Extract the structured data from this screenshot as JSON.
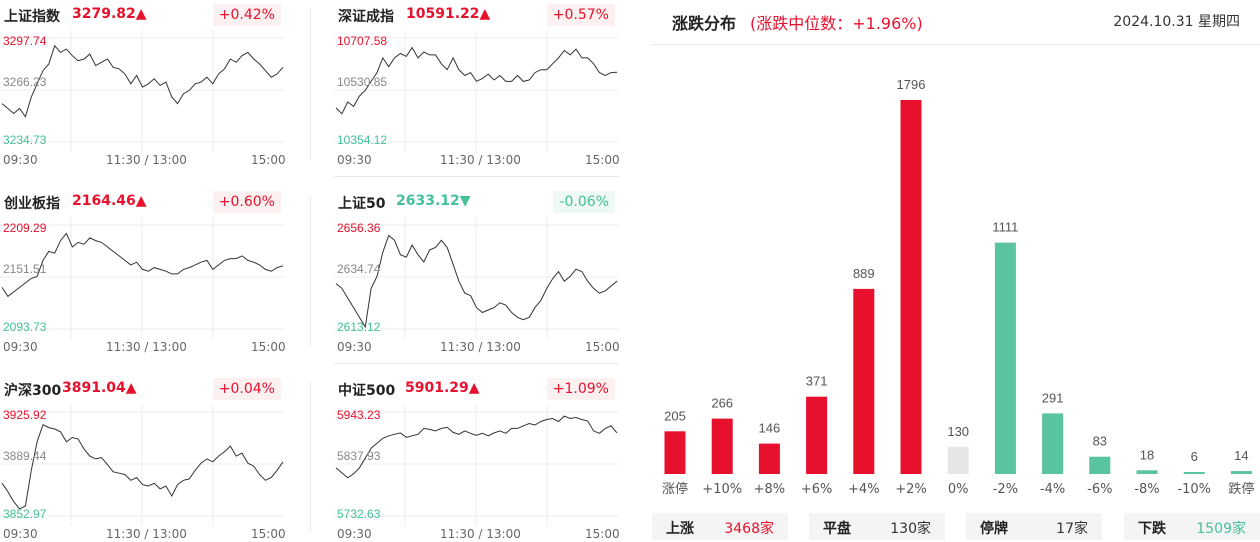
{
  "indices": [
    {
      "name": "上证指数",
      "price": "3279.82",
      "dir": "up",
      "change": "+0.42%",
      "ymax": "3297.74",
      "ymid": "3266.23",
      "ymin": "3234.73",
      "series": [
        3258,
        3255,
        3252,
        3255,
        3250,
        3262,
        3270,
        3278,
        3282,
        3293,
        3289,
        3291,
        3287,
        3284,
        3285,
        3288,
        3281,
        3283,
        3285,
        3280,
        3279,
        3276,
        3270,
        3275,
        3268,
        3270,
        3273,
        3269,
        3271,
        3262,
        3258,
        3264,
        3266,
        3270,
        3271,
        3274,
        3270,
        3276,
        3279,
        3285,
        3283,
        3287,
        3289,
        3285,
        3282,
        3278,
        3274,
        3276,
        3280
      ]
    },
    {
      "name": "深证成指",
      "price": "10591.22",
      "dir": "up",
      "change": "+0.57%",
      "ymax": "10707.58",
      "ymid": "10530.85",
      "ymin": "10354.12",
      "series": [
        10470,
        10450,
        10490,
        10475,
        10510,
        10530,
        10560,
        10590,
        10640,
        10610,
        10640,
        10655,
        10645,
        10675,
        10640,
        10660,
        10650,
        10650,
        10620,
        10600,
        10640,
        10600,
        10580,
        10590,
        10560,
        10570,
        10585,
        10565,
        10580,
        10560,
        10560,
        10580,
        10560,
        10565,
        10590,
        10600,
        10600,
        10620,
        10640,
        10665,
        10650,
        10670,
        10640,
        10640,
        10620,
        10590,
        10580,
        10590,
        10591
      ]
    },
    {
      "name": "创业板指",
      "price": "2164.46",
      "dir": "up",
      "change": "+0.60%",
      "ymax": "2209.29",
      "ymid": "2151.51",
      "ymin": "2093.73",
      "series": [
        2140,
        2130,
        2135,
        2140,
        2145,
        2150,
        2152,
        2170,
        2180,
        2178,
        2192,
        2200,
        2185,
        2190,
        2188,
        2195,
        2192,
        2190,
        2185,
        2180,
        2175,
        2170,
        2165,
        2168,
        2160,
        2158,
        2162,
        2160,
        2158,
        2155,
        2155,
        2160,
        2162,
        2165,
        2168,
        2170,
        2160,
        2165,
        2170,
        2172,
        2172,
        2175,
        2170,
        2168,
        2165,
        2160,
        2158,
        2162,
        2164
      ]
    },
    {
      "name": "上证50",
      "price": "2633.12",
      "dir": "down",
      "change": "-0.06%",
      "ymax": "2656.36",
      "ymid": "2634.74",
      "ymin": "2613.12",
      "series": [
        2632,
        2630,
        2626,
        2622,
        2618,
        2614,
        2630,
        2635,
        2645,
        2652,
        2650,
        2644,
        2643,
        2648,
        2644,
        2641,
        2646,
        2647,
        2650,
        2647,
        2640,
        2633,
        2628,
        2627,
        2622,
        2620,
        2621,
        2622,
        2624,
        2623,
        2620,
        2618,
        2617,
        2618,
        2622,
        2625,
        2630,
        2634,
        2637,
        2633,
        2635,
        2638,
        2637,
        2633,
        2630,
        2628,
        2629,
        2631,
        2633
      ]
    },
    {
      "name": "沪深300",
      "price": "3891.04",
      "dir": "up",
      "change": "+0.04%",
      "ymax": "3925.92",
      "ymid": "3889.44",
      "ymin": "3852.97",
      "series": [
        3876,
        3870,
        3863,
        3858,
        3860,
        3885,
        3905,
        3917,
        3915,
        3914,
        3912,
        3905,
        3908,
        3907,
        3900,
        3895,
        3893,
        3894,
        3889,
        3884,
        3883,
        3882,
        3878,
        3880,
        3875,
        3874,
        3876,
        3872,
        3874,
        3867,
        3875,
        3878,
        3879,
        3885,
        3890,
        3893,
        3891,
        3895,
        3898,
        3902,
        3895,
        3897,
        3890,
        3888,
        3882,
        3878,
        3880,
        3885,
        3891
      ]
    },
    {
      "name": "中证500",
      "price": "5901.29",
      "dir": "up",
      "change": "+1.09%",
      "ymax": "5943.23",
      "ymid": "5837.93",
      "ymin": "5732.63",
      "series": [
        5830,
        5820,
        5810,
        5818,
        5830,
        5850,
        5870,
        5880,
        5890,
        5895,
        5898,
        5901,
        5892,
        5895,
        5898,
        5910,
        5908,
        5905,
        5910,
        5912,
        5902,
        5898,
        5905,
        5900,
        5896,
        5900,
        5895,
        5901,
        5905,
        5900,
        5910,
        5910,
        5915,
        5920,
        5917,
        5924,
        5928,
        5930,
        5924,
        5935,
        5930,
        5932,
        5928,
        5925,
        5905,
        5900,
        5910,
        5915,
        5901
      ]
    }
  ],
  "time_labels": {
    "open": "09:30",
    "mid": "11:30 / 13:00",
    "close": "15:00"
  },
  "distribution": {
    "title": "涨跌分布",
    "subtitle": "(涨跌中位数：+1.96%)",
    "date": "2024.10.31 星期四",
    "colors": {
      "up": "#e8112d",
      "flat": "#e6e6e6",
      "down": "#5ac3a0"
    },
    "chart_data": {
      "type": "bar",
      "categories": [
        "涨停",
        "+10%",
        "+8%",
        "+6%",
        "+4%",
        "+2%",
        "0%",
        "-2%",
        "-4%",
        "-6%",
        "-8%",
        "-10%",
        "跌停"
      ],
      "values": [
        205,
        266,
        146,
        371,
        889,
        1796,
        130,
        1111,
        291,
        83,
        18,
        6,
        14
      ],
      "bar_color_groups": [
        "up",
        "up",
        "up",
        "up",
        "up",
        "up",
        "flat",
        "down",
        "down",
        "down",
        "down",
        "down",
        "down"
      ]
    }
  },
  "stats": [
    {
      "label": "上涨",
      "value": "3468家",
      "tone": "up"
    },
    {
      "label": "平盘",
      "value": "130家",
      "tone": "neutral"
    },
    {
      "label": "停牌",
      "value": "17家",
      "tone": "neutral"
    },
    {
      "label": "下跌",
      "value": "1509家",
      "tone": "down"
    }
  ]
}
